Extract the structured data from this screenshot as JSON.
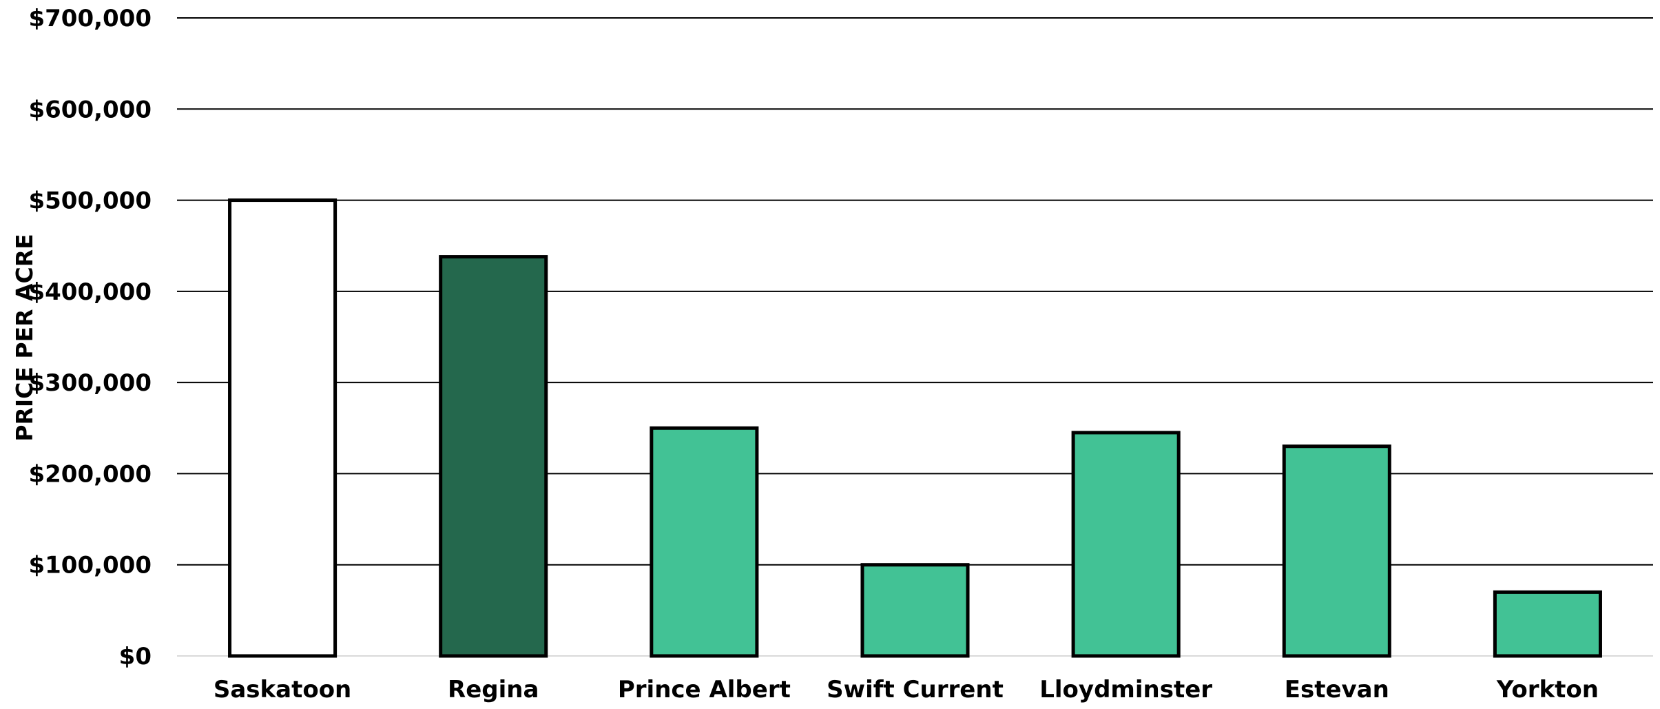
{
  "chart_data": {
    "type": "bar",
    "title": "",
    "xlabel": "",
    "ylabel": "PRICE PER ACRE",
    "categories": [
      "Saskatoon",
      "Regina",
      "Prince Albert",
      "Swift Current",
      "Lloydminster",
      "Estevan",
      "Yorkton"
    ],
    "values": [
      500000,
      438000,
      250000,
      100000,
      245000,
      230000,
      70000
    ],
    "bar_colors": [
      "#FFFFFF",
      "#24684D",
      "#42C295",
      "#42C295",
      "#42C295",
      "#42C295",
      "#42C295"
    ],
    "bar_outline_color": "#000000",
    "ylim": [
      0,
      700000
    ],
    "yticks": [
      0,
      100000,
      200000,
      300000,
      400000,
      500000,
      600000,
      700000
    ],
    "ytick_labels": [
      "$0",
      "$100,000",
      "$200,000",
      "$300,000",
      "$400,000",
      "$500,000",
      "$600,000",
      "$700,000"
    ],
    "grid": true,
    "gridline_color": "#000000",
    "baseline_color": "#D9D9D9",
    "legend": "none"
  }
}
